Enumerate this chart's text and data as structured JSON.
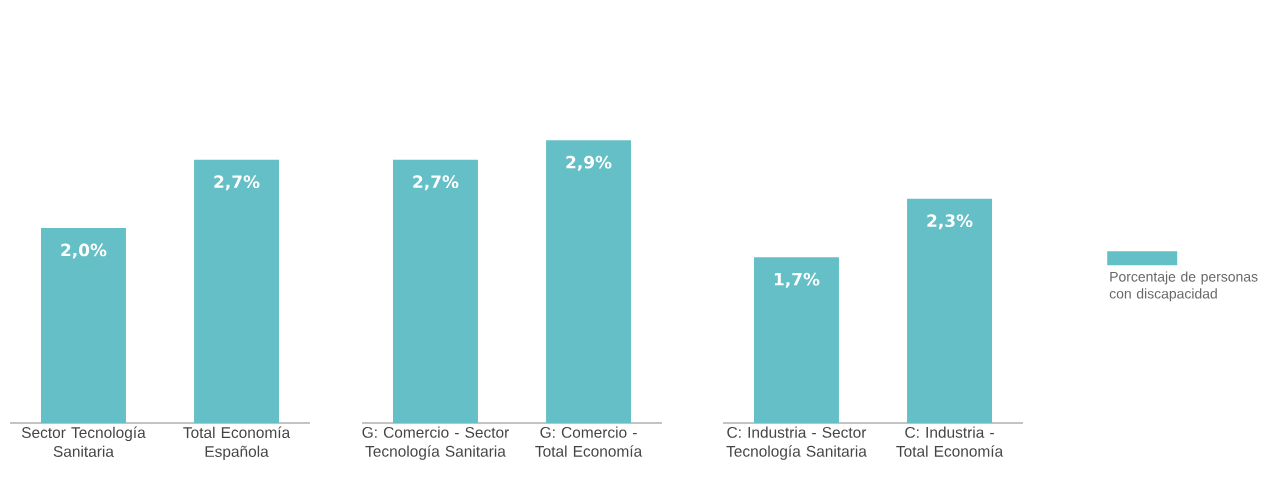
{
  "chart_data": [
    {
      "type": "bar",
      "categories": [
        "Sector Tecnología Sanitaria",
        "Total Economía Española"
      ],
      "tick_labels": "x",
      "series": [
        {
          "color": "#64bfc6",
          "values": [
            2.0,
            2.7
          ],
          "value_labels": [
            "2,0%",
            "2,7%"
          ]
        }
      ]
    },
    {
      "type": "bar",
      "categories": [
        "G: Comercio - Sector Tecnología Sanitaria",
        "G: Comercio - Total Economía"
      ],
      "tick_labels": "x",
      "series": [
        {
          "color": "#64bfc6",
          "values": [
            2.7,
            2.9
          ],
          "value_labels": [
            "2,7%",
            "2,9%"
          ]
        }
      ]
    },
    {
      "type": "bar",
      "categories": [
        "C: Industria - Sector Tecnología Sanitaria",
        "C: Industria - Total Economía"
      ],
      "tick_labels": "x",
      "legend": "right",
      "series": [
        {
          "name": "Porcentaje de personas con discapacidad",
          "color": "#64bfc6",
          "values": [
            1.7,
            2.3
          ],
          "value_labels": [
            "1,7%",
            "2,3%"
          ]
        }
      ]
    }
  ]
}
